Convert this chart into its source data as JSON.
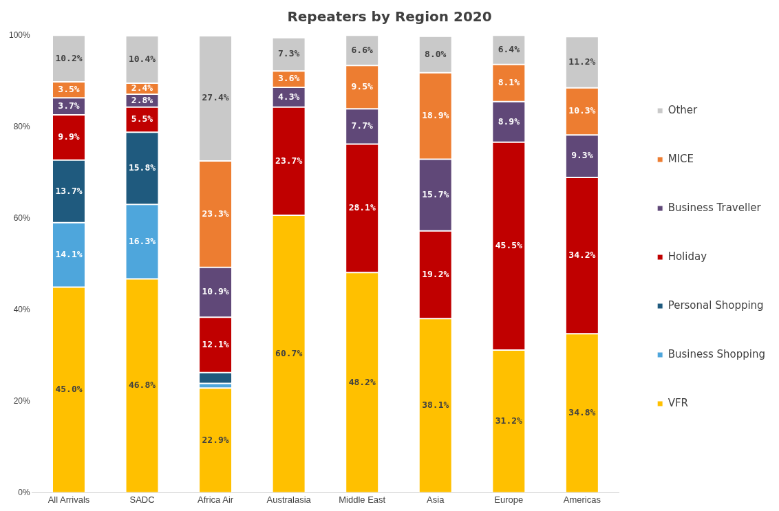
{
  "chart_data": {
    "type": "bar",
    "stacked": true,
    "title": "Repeaters by Region 2020",
    "categories": [
      "All Arrivals",
      "SADC",
      "Africa Air",
      "Australasia",
      "Middle East",
      "Asia",
      "Europe",
      "Americas"
    ],
    "ylim": [
      0,
      100
    ],
    "yticks": [
      {
        "value": 0,
        "label": "0%"
      },
      {
        "value": 20,
        "label": "20%"
      },
      {
        "value": 40,
        "label": "40%"
      },
      {
        "value": 60,
        "label": "60%"
      },
      {
        "value": 80,
        "label": "80%"
      },
      {
        "value": 100,
        "label": "100%"
      }
    ],
    "grid": false,
    "legend": "right",
    "series": [
      {
        "name": "VFR",
        "color": "#ffc000",
        "values": [
          45.0,
          46.8,
          22.9,
          60.7,
          48.2,
          38.1,
          31.2,
          34.8
        ],
        "value_labels": [
          "45.0%",
          "46.8%",
          "22.9%",
          "60.7%",
          "48.2%",
          "38.1%",
          "31.2%",
          "34.8%"
        ]
      },
      {
        "name": "Business Shopping",
        "color": "#4ea6dc",
        "values": [
          14.1,
          16.3,
          1.0,
          null,
          null,
          null,
          null,
          null
        ],
        "value_labels": [
          "14.1%",
          "16.3%",
          null,
          null,
          null,
          null,
          null,
          null
        ]
      },
      {
        "name": "Personal Shopping",
        "color": "#1f5a7e",
        "values": [
          13.7,
          15.8,
          2.4,
          null,
          null,
          null,
          null,
          null
        ],
        "value_labels": [
          "13.7%",
          "15.8%",
          null,
          null,
          null,
          null,
          null,
          null
        ]
      },
      {
        "name": "Holiday",
        "color": "#c00000",
        "values": [
          9.9,
          5.5,
          12.1,
          23.7,
          28.1,
          19.2,
          45.5,
          34.2
        ],
        "value_labels": [
          "9.9%",
          "5.5%",
          "12.1%",
          "23.7%",
          "28.1%",
          "19.2%",
          "45.5%",
          "34.2%"
        ]
      },
      {
        "name": "Business Traveller",
        "color": "#604878",
        "values": [
          3.7,
          2.8,
          10.9,
          4.3,
          7.7,
          15.7,
          8.9,
          9.3
        ],
        "value_labels": [
          "3.7%",
          "2.8%",
          "10.9%",
          "4.3%",
          "7.7%",
          "15.7%",
          "8.9%",
          "9.3%"
        ]
      },
      {
        "name": "MICE",
        "color": "#ed7d31",
        "values": [
          3.5,
          2.4,
          23.3,
          3.6,
          9.5,
          18.9,
          8.1,
          10.3
        ],
        "value_labels": [
          "3.5%",
          "2.4%",
          "23.3%",
          "3.6%",
          "9.5%",
          "18.9%",
          "8.1%",
          "10.3%"
        ]
      },
      {
        "name": "Other",
        "color": "#c9c9c9",
        "values": [
          10.2,
          10.4,
          27.4,
          7.3,
          6.6,
          8.0,
          6.4,
          11.2
        ],
        "value_labels": [
          "10.2%",
          "10.4%",
          "27.4%",
          "7.3%",
          "6.6%",
          "8.0%",
          "6.4%",
          "11.2%"
        ]
      }
    ]
  }
}
